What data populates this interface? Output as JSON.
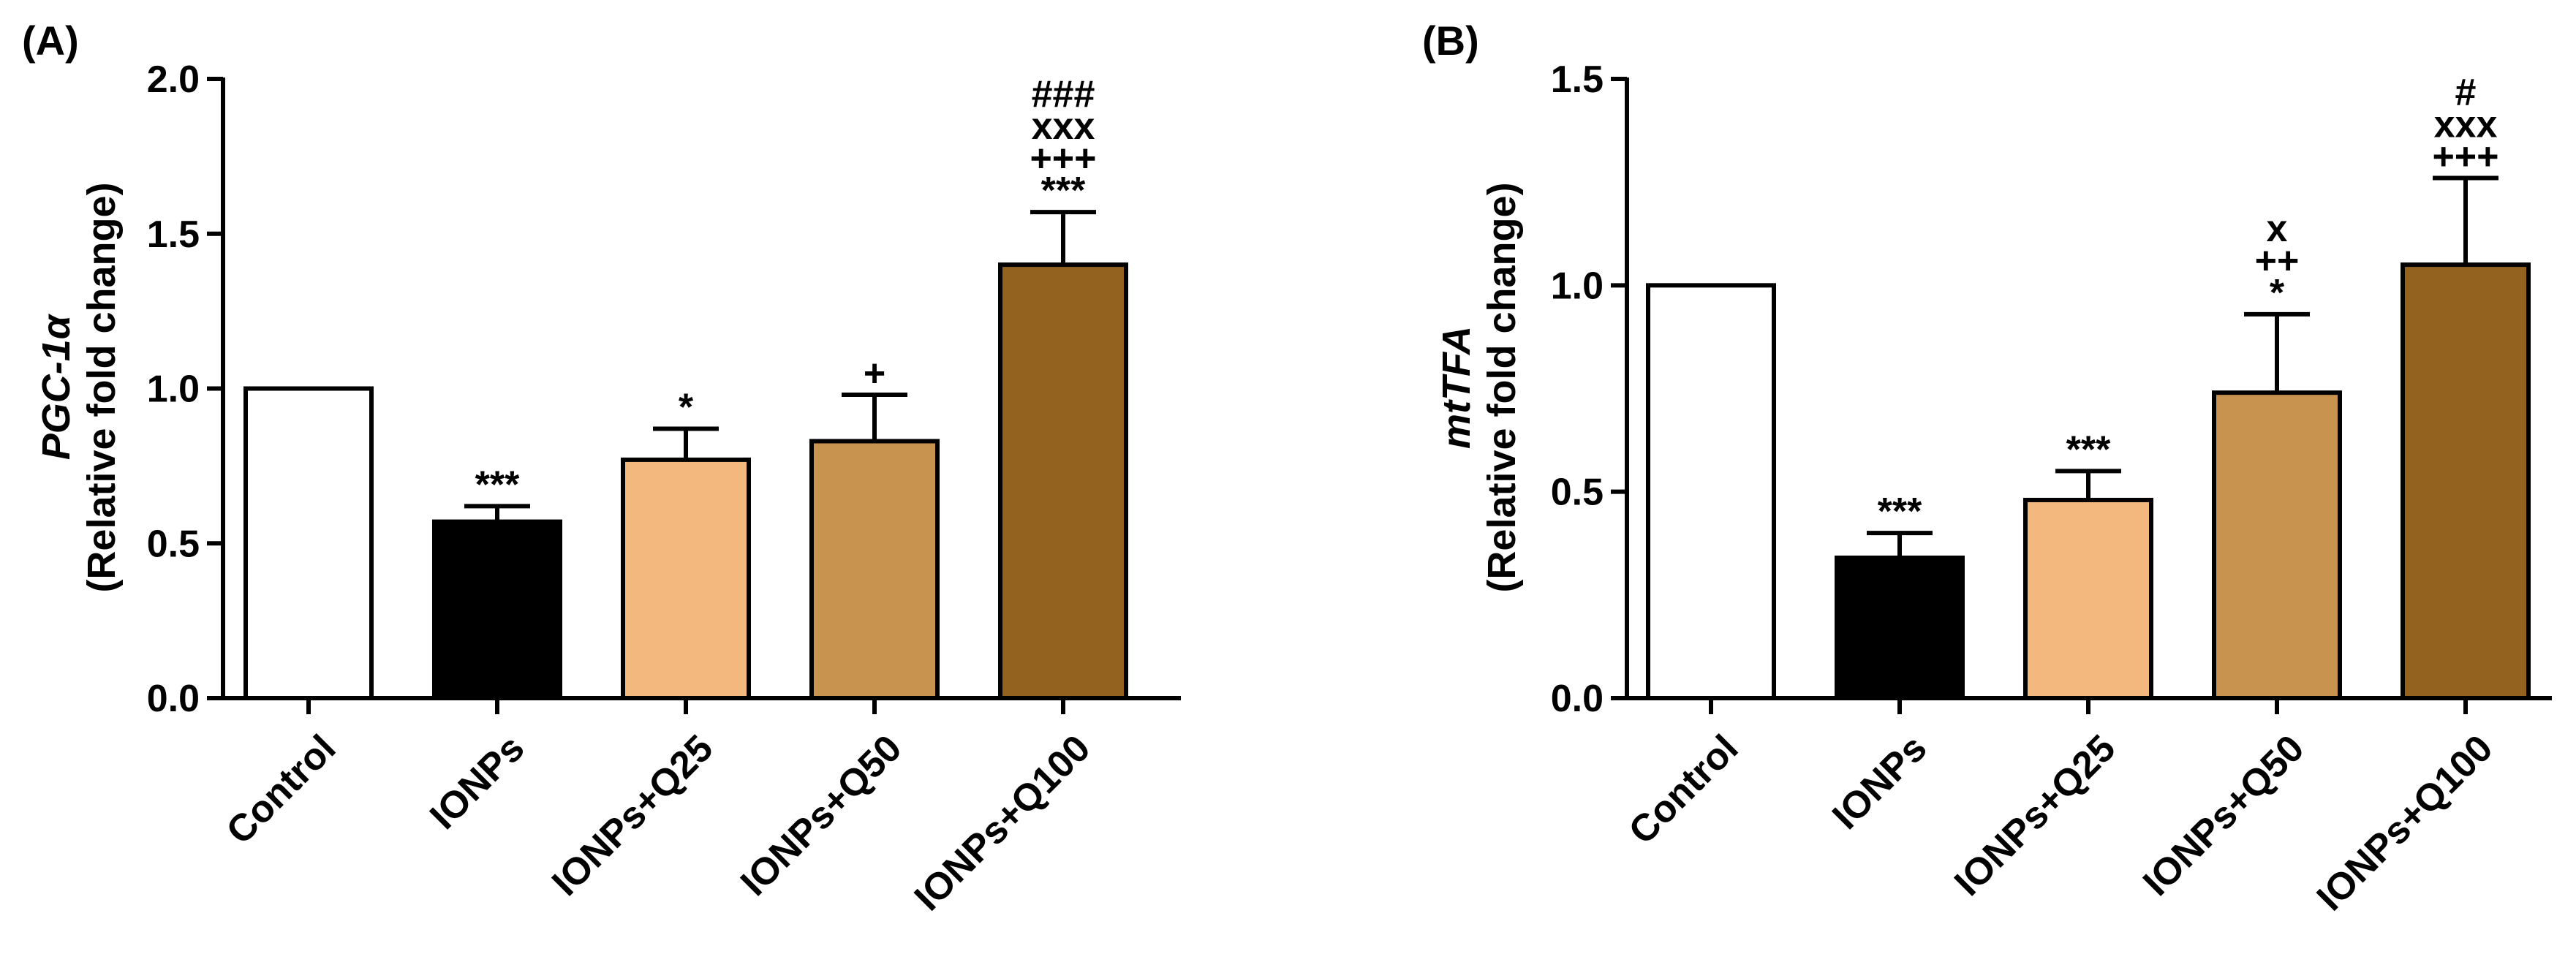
{
  "chart_data": [
    {
      "panel": "(A)",
      "type": "bar",
      "ylabel_gene": "PGC-1",
      "ylabel_symbol": "α",
      "ylabel_sub": "(Relative fold change)",
      "ylim": [
        0,
        2.0
      ],
      "yticks": [
        "0.0",
        "0.5",
        "1.0",
        "1.5",
        "2.0"
      ],
      "categories": [
        "Control",
        "IONPs",
        "IONPs+Q25",
        "IONPs+Q50",
        "IONPs+Q100"
      ],
      "values": [
        1.0,
        0.57,
        0.77,
        0.83,
        1.4
      ],
      "errors": [
        0,
        0.05,
        0.1,
        0.15,
        0.17
      ],
      "colors": [
        "#ffffff",
        "#000000",
        "#f2b87e",
        "#c8934f",
        "#93621f"
      ],
      "significance": [
        [],
        [
          "***"
        ],
        [
          "*"
        ],
        [
          "+"
        ],
        [
          "###",
          "xxx",
          "+++",
          "***"
        ]
      ]
    },
    {
      "panel": "(B)",
      "type": "bar",
      "ylabel_gene": "mtTFA",
      "ylabel_symbol": "",
      "ylabel_sub": "(Relative fold change)",
      "ylim": [
        0,
        1.5
      ],
      "yticks": [
        "0.0",
        "0.5",
        "1.0",
        "1.5"
      ],
      "categories": [
        "Control",
        "IONPs",
        "IONPs+Q25",
        "IONPs+Q50",
        "IONPs+Q100"
      ],
      "values": [
        1.0,
        0.34,
        0.48,
        0.74,
        1.05
      ],
      "errors": [
        0,
        0.06,
        0.07,
        0.19,
        0.21
      ],
      "colors": [
        "#ffffff",
        "#000000",
        "#f2b87e",
        "#c8934f",
        "#93621f"
      ],
      "significance": [
        [],
        [
          "***"
        ],
        [
          "***"
        ],
        [
          "x",
          "++",
          "*"
        ],
        [
          "#",
          "xxx",
          "+++"
        ]
      ]
    }
  ]
}
